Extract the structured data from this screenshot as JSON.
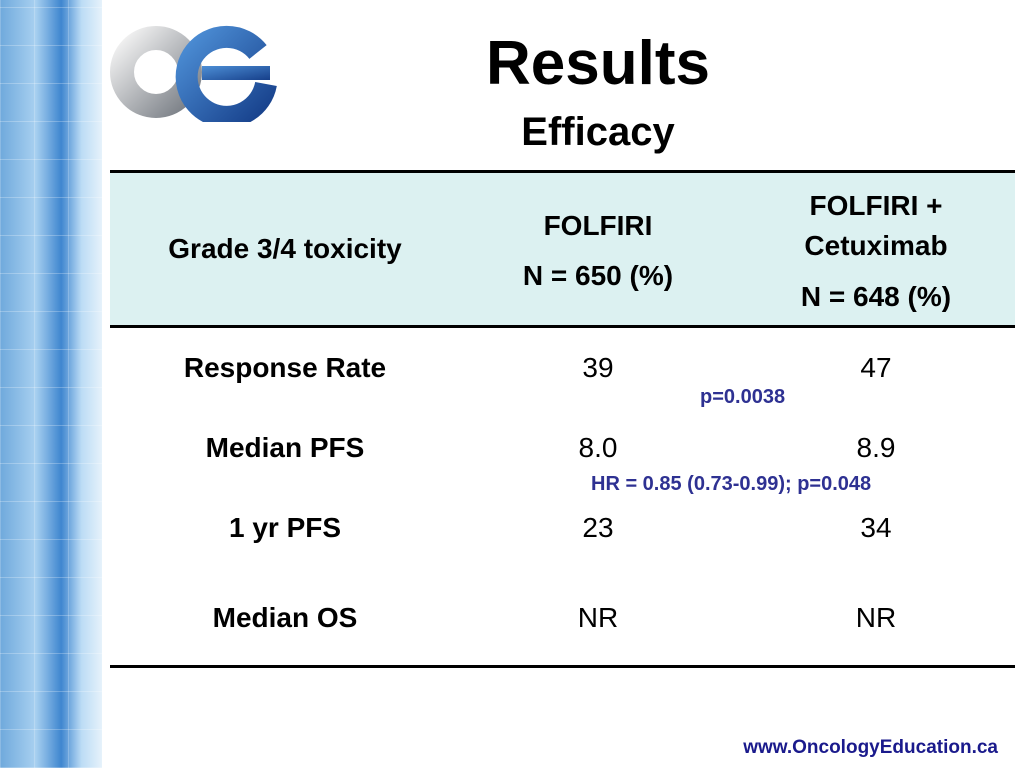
{
  "header": {
    "title": "Results",
    "subtitle": "Efficacy"
  },
  "table": {
    "columns": [
      {
        "label": "Grade 3/4 toxicity"
      },
      {
        "label": "FOLFIRI",
        "n": "N = 650 (%)"
      },
      {
        "label": "FOLFIRI + Cetuximab",
        "n": "N = 648 (%)"
      }
    ],
    "rows": [
      [
        "Response Rate",
        "39",
        "47"
      ],
      [
        "Median PFS",
        "8.0",
        "8.9"
      ],
      [
        "1 yr PFS",
        "23",
        "34"
      ],
      [
        "Median OS",
        "NR",
        "NR"
      ]
    ]
  },
  "annotations": [
    "p=0.0038",
    "HR = 0.85 (0.73-0.99); p=0.048"
  ],
  "footer": "www.OncologyEducation.ca"
}
